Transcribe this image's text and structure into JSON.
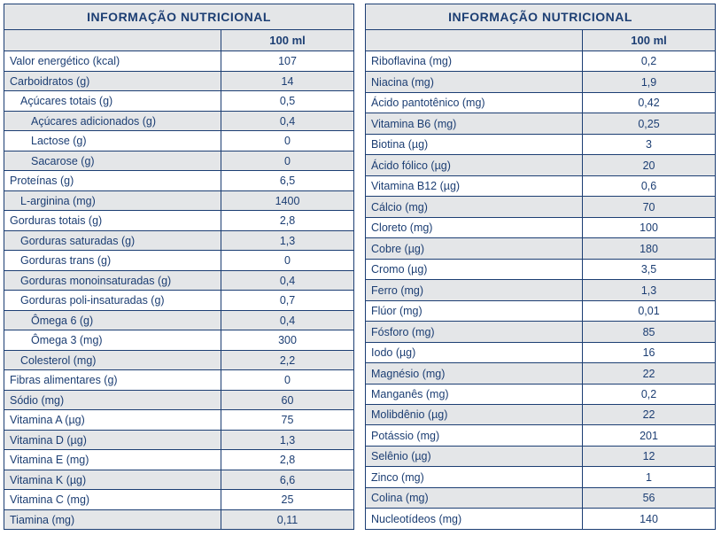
{
  "title": "INFORMAÇÃO NUTRICIONAL",
  "column_header": "100 ml",
  "colors": {
    "border": "#1c3e73",
    "text": "#1c3e73",
    "alt_bg": "#e4e6e8",
    "row_bg": "#ffffff"
  },
  "typography": {
    "font_family": "Arial",
    "title_fontsize": 14,
    "colhead_fontsize": 13,
    "cell_fontsize": 12.5
  },
  "left": [
    {
      "label": "Valor energético (kcal)",
      "value": "107",
      "indent": 0,
      "alt": false
    },
    {
      "label": "Carboidratos (g)",
      "value": "14",
      "indent": 0,
      "alt": true
    },
    {
      "label": "Açúcares totais (g)",
      "value": "0,5",
      "indent": 1,
      "alt": false
    },
    {
      "label": "Açúcares adicionados (g)",
      "value": "0,4",
      "indent": 2,
      "alt": true
    },
    {
      "label": "Lactose (g)",
      "value": "0",
      "indent": 2,
      "alt": false
    },
    {
      "label": "Sacarose (g)",
      "value": "0",
      "indent": 2,
      "alt": true
    },
    {
      "label": "Proteínas (g)",
      "value": "6,5",
      "indent": 0,
      "alt": false
    },
    {
      "label": "L-arginina (mg)",
      "value": "1400",
      "indent": 1,
      "alt": true
    },
    {
      "label": "Gorduras totais (g)",
      "value": "2,8",
      "indent": 0,
      "alt": false
    },
    {
      "label": "Gorduras saturadas (g)",
      "value": "1,3",
      "indent": 1,
      "alt": true
    },
    {
      "label": "Gorduras trans (g)",
      "value": "0",
      "indent": 1,
      "alt": false
    },
    {
      "label": "Gorduras monoinsaturadas (g)",
      "value": "0,4",
      "indent": 1,
      "alt": true
    },
    {
      "label": "Gorduras poli-insaturadas (g)",
      "value": "0,7",
      "indent": 1,
      "alt": false
    },
    {
      "label": "Ômega 6 (g)",
      "value": "0,4",
      "indent": 2,
      "alt": true
    },
    {
      "label": "Ômega 3 (mg)",
      "value": "300",
      "indent": 2,
      "alt": false
    },
    {
      "label": "Colesterol (mg)",
      "value": "2,2",
      "indent": 1,
      "alt": true
    },
    {
      "label": "Fibras alimentares (g)",
      "value": "0",
      "indent": 0,
      "alt": false
    },
    {
      "label": "Sódio (mg)",
      "value": "60",
      "indent": 0,
      "alt": true
    },
    {
      "label": "Vitamina A (µg)",
      "value": "75",
      "indent": 0,
      "alt": false
    },
    {
      "label": "Vitamina D (µg)",
      "value": "1,3",
      "indent": 0,
      "alt": true
    },
    {
      "label": "Vitamina E (mg)",
      "value": "2,8",
      "indent": 0,
      "alt": false
    },
    {
      "label": "Vitamina K (µg)",
      "value": "6,6",
      "indent": 0,
      "alt": true
    },
    {
      "label": "Vitamina C (mg)",
      "value": "25",
      "indent": 0,
      "alt": false
    },
    {
      "label": "Tiamina (mg)",
      "value": "0,11",
      "indent": 0,
      "alt": true
    }
  ],
  "right": [
    {
      "label": "Riboflavina (mg)",
      "value": "0,2",
      "indent": 0,
      "alt": false
    },
    {
      "label": "Niacina (mg)",
      "value": "1,9",
      "indent": 0,
      "alt": true
    },
    {
      "label": "Ácido pantotênico (mg)",
      "value": "0,42",
      "indent": 0,
      "alt": false
    },
    {
      "label": "Vitamina B6 (mg)",
      "value": "0,25",
      "indent": 0,
      "alt": true
    },
    {
      "label": "Biotina (µg)",
      "value": "3",
      "indent": 0,
      "alt": false
    },
    {
      "label": "Ácido fólico (µg)",
      "value": "20",
      "indent": 0,
      "alt": true
    },
    {
      "label": "Vitamina B12 (µg)",
      "value": "0,6",
      "indent": 0,
      "alt": false
    },
    {
      "label": "Cálcio (mg)",
      "value": "70",
      "indent": 0,
      "alt": true
    },
    {
      "label": "Cloreto (mg)",
      "value": "100",
      "indent": 0,
      "alt": false
    },
    {
      "label": "Cobre (µg)",
      "value": "180",
      "indent": 0,
      "alt": true
    },
    {
      "label": "Cromo (µg)",
      "value": "3,5",
      "indent": 0,
      "alt": false
    },
    {
      "label": "Ferro (mg)",
      "value": "1,3",
      "indent": 0,
      "alt": true
    },
    {
      "label": "Flúor (mg)",
      "value": "0,01",
      "indent": 0,
      "alt": false
    },
    {
      "label": "Fósforo (mg)",
      "value": "85",
      "indent": 0,
      "alt": true
    },
    {
      "label": "Iodo (µg)",
      "value": "16",
      "indent": 0,
      "alt": false
    },
    {
      "label": "Magnésio (mg)",
      "value": "22",
      "indent": 0,
      "alt": true
    },
    {
      "label": "Manganês (mg)",
      "value": "0,2",
      "indent": 0,
      "alt": false
    },
    {
      "label": "Molibdênio (µg)",
      "value": "22",
      "indent": 0,
      "alt": true
    },
    {
      "label": "Potássio (mg)",
      "value": "201",
      "indent": 0,
      "alt": false
    },
    {
      "label": "Selênio (µg)",
      "value": "12",
      "indent": 0,
      "alt": true
    },
    {
      "label": "Zinco (mg)",
      "value": "1",
      "indent": 0,
      "alt": false
    },
    {
      "label": "Colina (mg)",
      "value": "56",
      "indent": 0,
      "alt": true
    },
    {
      "label": "Nucleotídeos (mg)",
      "value": "140",
      "indent": 0,
      "alt": false
    }
  ]
}
